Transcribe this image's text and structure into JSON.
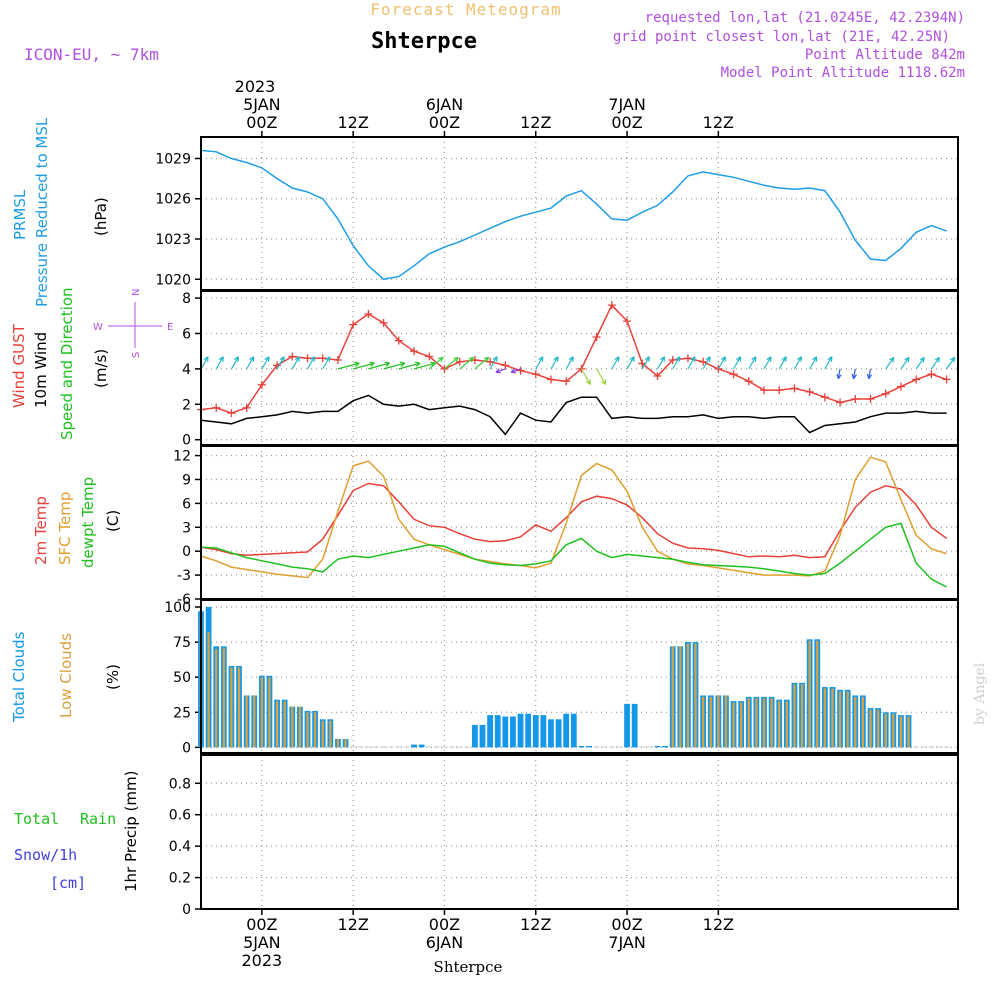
{
  "header": {
    "title": "Forecast Meteogram",
    "location": "Shterpce",
    "model": "ICON-EU, ~ 7km",
    "requested": "requested lon,lat (21.0245E, 42.2394N)",
    "grid_point": "grid point closest lon,lat (21E, 42.25N)",
    "point_altitude": "Point Altitude 842m",
    "model_altitude": "Model Point Altitude 1118.62m",
    "credit": "by Angel"
  },
  "time_axis": {
    "top_year": "2023",
    "days": [
      "5JAN",
      "6JAN",
      "7JAN"
    ],
    "ticks": [
      "00Z",
      "12Z",
      "00Z",
      "12Z",
      "00Z",
      "12Z"
    ],
    "bottom_label": "Shterpce"
  },
  "panel_labels": {
    "pressure": {
      "line1": "PRMSL",
      "line2": "Pressure Reduced to MSL",
      "unit": "(hPa)"
    },
    "wind": {
      "gust": "Wind GUST",
      "wind10": "10m Wind",
      "speed_dir": "Speed and Direction",
      "unit": "(m/s)",
      "compass_n": "N",
      "compass_s": "S",
      "compass_w": "W",
      "compass_e": "E"
    },
    "temp": {
      "t2m": "2m Temp",
      "sfc": "SFC Temp",
      "dewpt": "dewpt Temp",
      "unit": "(C)"
    },
    "clouds": {
      "total": "Total Clouds",
      "low": "Low Clouds",
      "unit": "(%)"
    },
    "precip": {
      "total": "Total",
      "rain": "Rain",
      "snow": "Snow/1h",
      "snow_unit": "[cm]",
      "axis": "1hr Precip (mm)"
    }
  },
  "colors": {
    "pressure": "#1e9de6",
    "gust": "#e8403a",
    "wind": "#000000",
    "t2m": "#e8403a",
    "sfc": "#e0a030",
    "dewpt": "#20c020",
    "total_clouds": "#1598e8",
    "low_clouds": "#d8a040",
    "purple": "#b050e0",
    "orange_title": "#f0c070",
    "green_label": "#20c020",
    "snow_label": "#4040e0"
  },
  "chart_data": [
    {
      "type": "line",
      "name": "pressure",
      "x_hours": [
        -8,
        -6,
        -4,
        -2,
        0,
        2,
        4,
        6,
        8,
        10,
        12,
        14,
        16,
        18,
        20,
        22,
        24,
        26,
        28,
        30,
        32,
        34,
        36,
        38,
        40,
        42,
        44,
        46,
        48,
        50,
        52,
        54,
        56,
        58,
        60,
        62,
        64,
        66,
        68,
        70,
        72,
        74,
        76,
        78,
        80,
        82,
        84,
        86,
        88,
        90
      ],
      "values": [
        1029.6,
        1029.5,
        1029.0,
        1028.7,
        1028.3,
        1027.5,
        1026.8,
        1026.5,
        1026.0,
        1024.5,
        1022.5,
        1021.0,
        1020.0,
        1020.2,
        1021.0,
        1021.9,
        1022.4,
        1022.8,
        1023.3,
        1023.8,
        1024.3,
        1024.7,
        1025.0,
        1025.3,
        1026.2,
        1026.6,
        1025.6,
        1024.5,
        1024.4,
        1025.0,
        1025.5,
        1026.5,
        1027.7,
        1028.0,
        1027.8,
        1027.6,
        1027.3,
        1027.0,
        1026.8,
        1026.7,
        1026.8,
        1026.6,
        1025.0,
        1022.9,
        1021.5,
        1021.4,
        1022.3,
        1023.5,
        1024.0,
        1023.6
      ],
      "ylabel": "(hPa)",
      "yticks": [
        1020,
        1023,
        1026,
        1029
      ],
      "ylim": [
        1019.2,
        1030.6
      ]
    },
    {
      "type": "line",
      "name": "wind",
      "x_hours": [
        -8,
        -6,
        -4,
        -2,
        0,
        2,
        4,
        6,
        8,
        10,
        12,
        14,
        16,
        18,
        20,
        22,
        24,
        26,
        28,
        30,
        32,
        34,
        36,
        38,
        40,
        42,
        44,
        46,
        48,
        50,
        52,
        54,
        56,
        58,
        60,
        62,
        64,
        66,
        68,
        70,
        72,
        74,
        76,
        78,
        80,
        82,
        84,
        86,
        88,
        90
      ],
      "series": [
        {
          "name": "Wind GUST",
          "values": [
            1.7,
            1.8,
            1.5,
            1.8,
            3.1,
            4.2,
            4.7,
            4.6,
            4.6,
            4.5,
            6.5,
            7.1,
            6.6,
            5.6,
            5.0,
            4.7,
            4.0,
            4.4,
            4.5,
            4.4,
            4.2,
            3.9,
            3.7,
            3.4,
            3.3,
            4.0,
            5.8,
            7.6,
            6.7,
            4.3,
            3.6,
            4.5,
            4.6,
            4.4,
            4.0,
            3.7,
            3.3,
            2.8,
            2.8,
            2.9,
            2.7,
            2.4,
            2.1,
            2.3,
            2.3,
            2.6,
            3.0,
            3.4,
            3.7,
            3.4
          ]
        },
        {
          "name": "10m Wind",
          "values": [
            1.1,
            1.0,
            0.9,
            1.2,
            1.3,
            1.4,
            1.6,
            1.5,
            1.6,
            1.6,
            2.2,
            2.5,
            2.0,
            1.9,
            2.0,
            1.7,
            1.8,
            1.9,
            1.7,
            1.3,
            0.3,
            1.5,
            1.1,
            1.0,
            2.1,
            2.4,
            2.4,
            1.2,
            1.3,
            1.2,
            1.2,
            1.3,
            1.3,
            1.4,
            1.2,
            1.3,
            1.3,
            1.2,
            1.3,
            1.3,
            0.4,
            0.8,
            0.9,
            1.0,
            1.3,
            1.5,
            1.5,
            1.6,
            1.5,
            1.5
          ]
        }
      ],
      "ylabel": "(m/s)",
      "yticks": [
        0,
        2,
        4,
        6,
        8
      ],
      "ylim": [
        -0.3,
        8.4
      ]
    },
    {
      "type": "line",
      "name": "temperature",
      "x_hours": [
        -8,
        -6,
        -4,
        -2,
        0,
        2,
        4,
        6,
        8,
        10,
        12,
        14,
        16,
        18,
        20,
        22,
        24,
        26,
        28,
        30,
        32,
        34,
        36,
        38,
        40,
        42,
        44,
        46,
        48,
        50,
        52,
        54,
        56,
        58,
        60,
        62,
        64,
        66,
        68,
        70,
        72,
        74,
        76,
        78,
        80,
        82,
        84,
        86,
        88,
        90
      ],
      "series": [
        {
          "name": "2m Temp",
          "values": [
            0.5,
            0.2,
            -0.3,
            -0.5,
            -0.4,
            -0.3,
            -0.2,
            -0.1,
            1.5,
            4.5,
            7.6,
            8.5,
            8.2,
            6.2,
            4.0,
            3.2,
            3.0,
            2.2,
            1.5,
            1.2,
            1.3,
            1.8,
            3.3,
            2.5,
            4.2,
            6.2,
            6.9,
            6.6,
            5.8,
            4.2,
            2.2,
            1.0,
            0.4,
            0.3,
            0.1,
            -0.3,
            -0.7,
            -0.6,
            -0.7,
            -0.5,
            -0.8,
            -0.7,
            2.6,
            5.5,
            7.4,
            8.2,
            7.8,
            5.8,
            3.0,
            1.6
          ]
        },
        {
          "name": "SFC Temp",
          "values": [
            -0.6,
            -1.2,
            -2.0,
            -2.3,
            -2.6,
            -2.9,
            -3.1,
            -3.3,
            -1.0,
            5.0,
            10.7,
            11.3,
            9.4,
            4.0,
            1.5,
            0.8,
            0.2,
            -0.4,
            -1.0,
            -1.3,
            -1.6,
            -1.8,
            -2.1,
            -1.5,
            3.5,
            9.5,
            11.0,
            10.2,
            7.5,
            3.0,
            0.0,
            -1.0,
            -1.6,
            -1.8,
            -2.1,
            -2.4,
            -2.7,
            -3.0,
            -3.0,
            -3.0,
            -3.1,
            -2.5,
            2.0,
            9.0,
            11.8,
            11.2,
            6.5,
            2.0,
            0.3,
            -0.3
          ]
        },
        {
          "name": "dewpt Temp",
          "values": [
            0.5,
            0.4,
            -0.2,
            -0.8,
            -1.2,
            -1.6,
            -2.0,
            -2.2,
            -2.6,
            -1.0,
            -0.6,
            -0.8,
            -0.4,
            0.0,
            0.4,
            0.8,
            0.6,
            -0.2,
            -1.0,
            -1.5,
            -1.7,
            -1.8,
            -1.6,
            -1.2,
            0.8,
            1.6,
            0.0,
            -0.8,
            -0.4,
            -0.6,
            -0.8,
            -1.0,
            -1.4,
            -1.7,
            -1.8,
            -1.9,
            -2.0,
            -2.2,
            -2.5,
            -2.8,
            -3.0,
            -2.8,
            -1.5,
            0.0,
            1.5,
            3.0,
            3.5,
            -1.5,
            -3.5,
            -4.5
          ]
        }
      ],
      "ylabel": "(C)",
      "yticks": [
        -6,
        -3,
        0,
        3,
        6,
        9,
        12
      ],
      "ylim": [
        -6,
        13.2
      ]
    },
    {
      "type": "bar",
      "name": "clouds",
      "x_hours": [
        -8,
        -7,
        -6,
        -5,
        -4,
        -3,
        -2,
        -1,
        0,
        1,
        2,
        3,
        4,
        5,
        6,
        7,
        8,
        9,
        10,
        11,
        12,
        13,
        14,
        15,
        16,
        17,
        18,
        19,
        20,
        21,
        22,
        23,
        24,
        25,
        26,
        27,
        28,
        29,
        30,
        31,
        32,
        33,
        34,
        35,
        36,
        37,
        38,
        39,
        40,
        41,
        42,
        43,
        44,
        45,
        46,
        47,
        48,
        49,
        50,
        51,
        52,
        53,
        54,
        55,
        56,
        57,
        58,
        59,
        60,
        61,
        62,
        63,
        64,
        65,
        66,
        67,
        68,
        69,
        70,
        71,
        72,
        73,
        74,
        75,
        76,
        77,
        78,
        79,
        80,
        81,
        82,
        83,
        84,
        85,
        86,
        87,
        88,
        89,
        90
      ],
      "series": [
        {
          "name": "Total Clouds",
          "values": [
            97,
            100,
            72,
            72,
            58,
            58,
            37,
            37,
            51,
            51,
            34,
            34,
            29,
            29,
            26,
            26,
            20,
            20,
            6,
            6,
            0,
            0,
            0,
            0,
            0,
            0,
            0,
            0,
            2,
            2,
            0,
            0,
            0,
            0,
            0,
            0,
            16,
            16,
            23,
            23,
            22,
            22,
            24,
            24,
            23,
            23,
            20,
            20,
            24,
            24,
            1,
            1,
            0,
            0,
            0,
            0,
            31,
            31,
            0,
            0,
            1,
            1,
            72,
            72,
            75,
            75,
            37,
            37,
            37,
            37,
            33,
            33,
            36,
            36,
            36,
            36,
            34,
            34,
            46,
            46,
            77,
            77,
            43,
            43,
            41,
            41,
            37,
            37,
            28,
            28,
            25,
            25,
            23,
            23,
            0,
            0,
            0,
            0,
            0
          ]
        },
        {
          "name": "Low Clouds",
          "values": [
            93,
            82,
            70,
            71,
            57,
            57,
            37,
            37,
            50,
            50,
            33,
            33,
            29,
            29,
            25,
            25,
            19,
            19,
            6,
            6,
            0,
            0,
            0,
            0,
            0,
            0,
            0,
            0,
            0,
            0,
            0,
            0,
            0,
            0,
            0,
            0,
            0,
            0,
            0,
            0,
            0,
            0,
            0,
            0,
            0,
            0,
            0,
            0,
            0,
            0,
            0,
            0,
            0,
            0,
            0,
            0,
            0,
            0,
            0,
            0,
            0,
            0,
            72,
            72,
            74,
            74,
            36,
            36,
            37,
            37,
            32,
            32,
            35,
            35,
            35,
            35,
            33,
            33,
            45,
            45,
            76,
            76,
            42,
            42,
            40,
            40,
            36,
            36,
            27,
            27,
            24,
            24,
            22,
            22,
            0,
            0,
            0,
            0,
            0
          ]
        }
      ],
      "ylabel": "(%)",
      "yticks": [
        0,
        25,
        50,
        75,
        100
      ],
      "ylim": [
        -4,
        105
      ]
    },
    {
      "type": "bar",
      "name": "precipitation",
      "x_hours": [],
      "values": [],
      "ylabel": "1hr Precip (mm)",
      "yticks": [
        0,
        0.2,
        0.4,
        0.6,
        0.8
      ],
      "ylim": [
        0,
        0.98
      ]
    }
  ]
}
